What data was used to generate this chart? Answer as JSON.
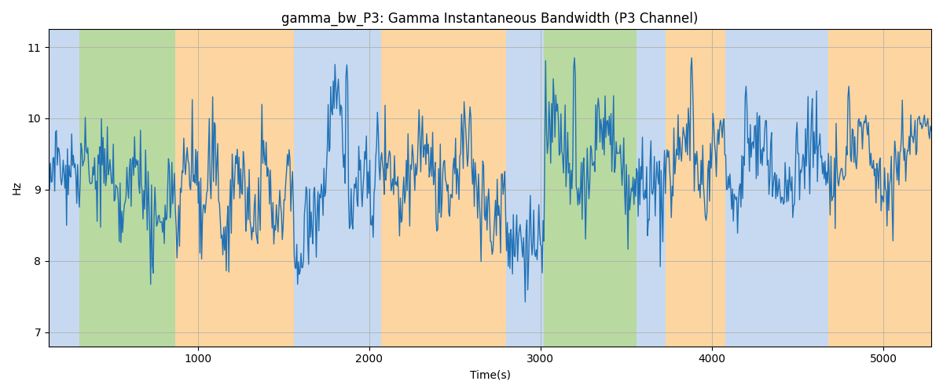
{
  "title": "gamma_bw_P3: Gamma Instantaneous Bandwidth (P3 Channel)",
  "xlabel": "Time(s)",
  "ylabel": "Hz",
  "xlim": [
    130,
    5280
  ],
  "ylim": [
    6.8,
    11.25
  ],
  "yticks": [
    7,
    8,
    9,
    10,
    11
  ],
  "line_color": "#2171b5",
  "line_width": 1.0,
  "bg_bands": [
    {
      "xmin": 130,
      "xmax": 310,
      "color": "#c6d9f0"
    },
    {
      "xmin": 310,
      "xmax": 870,
      "color": "#b8d9a0"
    },
    {
      "xmin": 870,
      "xmax": 1100,
      "color": "#fdd5a0"
    },
    {
      "xmin": 1100,
      "xmax": 1560,
      "color": "#fdd5a0"
    },
    {
      "xmin": 1560,
      "xmax": 1760,
      "color": "#c6d9f0"
    },
    {
      "xmin": 1760,
      "xmax": 2070,
      "color": "#c6d9f0"
    },
    {
      "xmin": 2070,
      "xmax": 2500,
      "color": "#fdd5a0"
    },
    {
      "xmin": 2500,
      "xmax": 2800,
      "color": "#fdd5a0"
    },
    {
      "xmin": 2800,
      "xmax": 2960,
      "color": "#c6d9f0"
    },
    {
      "xmin": 2960,
      "xmax": 3020,
      "color": "#c6d9f0"
    },
    {
      "xmin": 3020,
      "xmax": 3560,
      "color": "#b8d9a0"
    },
    {
      "xmin": 3560,
      "xmax": 3730,
      "color": "#c6d9f0"
    },
    {
      "xmin": 3730,
      "xmax": 4080,
      "color": "#fdd5a0"
    },
    {
      "xmin": 4080,
      "xmax": 4680,
      "color": "#c6d9f0"
    },
    {
      "xmin": 4680,
      "xmax": 5280,
      "color": "#fdd5a0"
    }
  ],
  "seed": 42,
  "n_points": 1040,
  "t_start": 130,
  "t_end": 5280
}
